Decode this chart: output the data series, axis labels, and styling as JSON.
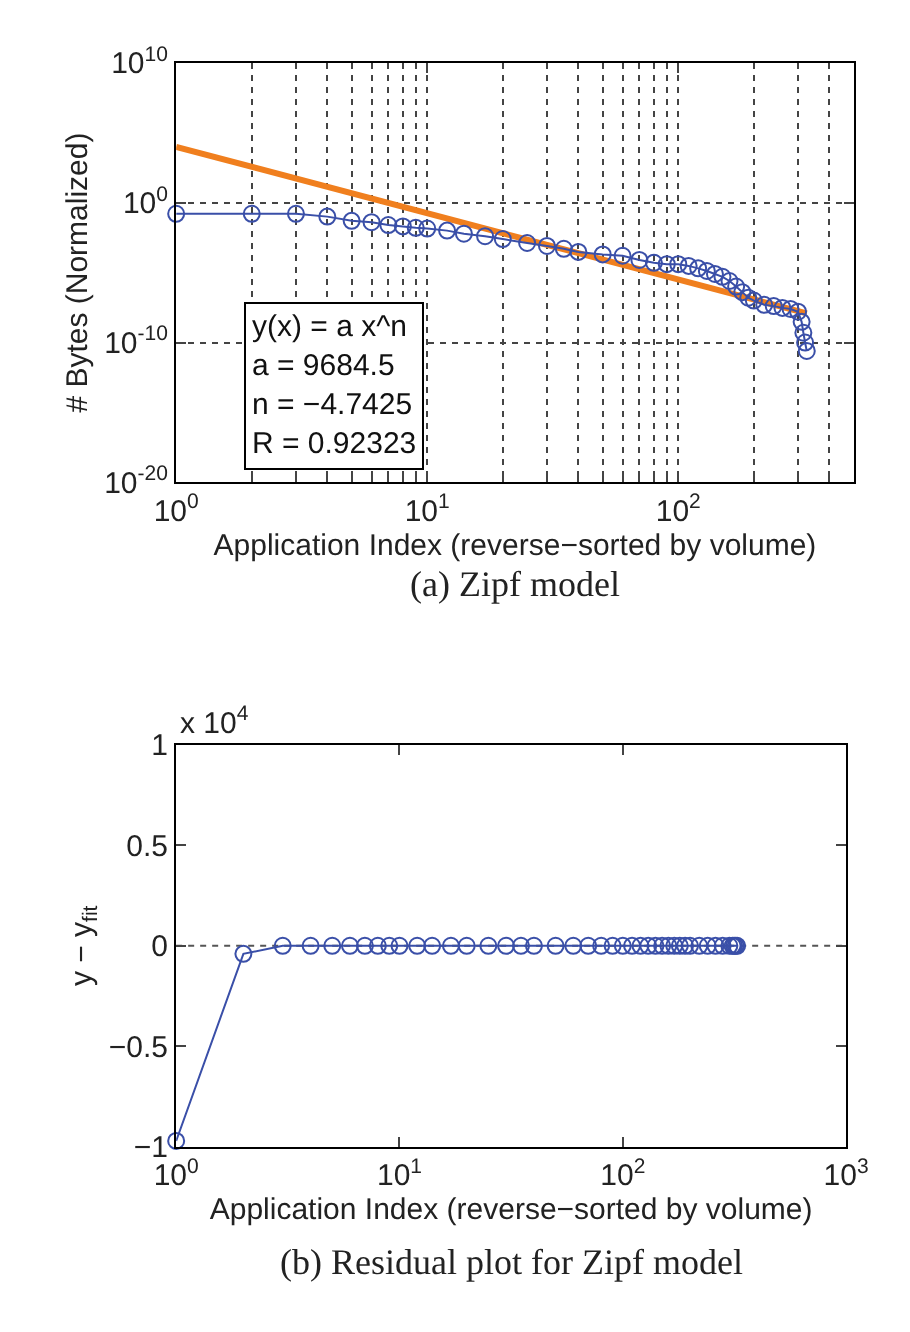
{
  "chart_data": [
    {
      "type": "line",
      "title": "(a) Zipf model",
      "xlabel": "Application Index (reverse−sorted by volume)",
      "ylabel": "# Bytes (Normalized)",
      "log": "xy",
      "grid": true,
      "xlim": [
        1,
        500
      ],
      "xticks": [
        {
          "value": 1,
          "label": "10$^{0}$"
        },
        {
          "value": 10,
          "label": "10$^{1}$"
        },
        {
          "value": 100,
          "label": "10$^{2}$"
        }
      ],
      "ylim": [
        1e-20,
        10000000000.0
      ],
      "yticks": [
        {
          "value": 1e-20,
          "label": "10$^{-20}$"
        },
        {
          "value": 1e-10,
          "label": "10$^{-10}$"
        },
        {
          "value": 1,
          "label": "10$^{0}$"
        },
        {
          "value": 10000000000.0,
          "label": "10$^{10}$"
        }
      ],
      "annotations": [
        "y(x) = a x^n\na = 9684.5\nn = −4.7425\nR = 0.92323"
      ],
      "series": [
        {
          "color": "#f07f1e",
          "marker": "none",
          "x": [
            1,
            325
          ],
          "values": [
            9684.5,
            1.2e-08
          ]
        },
        {
          "color": "#3a4fa8",
          "marker": "circle",
          "x": [
            1,
            2,
            3,
            4,
            5,
            6,
            7,
            8,
            9,
            10,
            12,
            14,
            17,
            20,
            25,
            30,
            35,
            40,
            50,
            60,
            70,
            80,
            90,
            100,
            110,
            120,
            130,
            140,
            150,
            160,
            170,
            180,
            190,
            200,
            220,
            240,
            260,
            280,
            300,
            310,
            315,
            320,
            325
          ],
          "values": [
            0.16,
            0.16,
            0.16,
            0.1,
            0.05,
            0.04,
            0.025,
            0.02,
            0.016,
            0.014,
            0.01,
            0.006,
            0.004,
            0.0025,
            0.0013,
            0.0008,
            0.0005,
            0.0003,
            0.0002,
            0.00016,
            8e-05,
            5e-05,
            4e-05,
            4e-05,
            3e-05,
            2e-05,
            1.3e-05,
            8e-06,
            5e-06,
            2.5e-06,
            1e-06,
            4e-07,
            1.6e-07,
            1e-07,
            5e-08,
            4e-08,
            3e-08,
            2.5e-08,
            1.6e-08,
            3e-09,
            5e-10,
            1e-10,
            2.5e-11
          ]
        }
      ]
    },
    {
      "type": "line",
      "title": "(b) Residual plot for Zipf model",
      "xlabel": "Application Index (reverse−sorted by volume)",
      "ylabel": "y − y$_{fit}$",
      "log": "x",
      "grid": false,
      "xlim": [
        1,
        1000
      ],
      "xticks": [
        {
          "value": 1,
          "label": "10$^{0}$"
        },
        {
          "value": 10,
          "label": "10$^{1}$"
        },
        {
          "value": 100,
          "label": "10$^{2}$"
        },
        {
          "value": 1000,
          "label": "10$^{3}$"
        }
      ],
      "ylim": [
        -1,
        1
      ],
      "yticks": [
        {
          "value": -1,
          "label": "−1"
        },
        {
          "value": -0.5,
          "label": "−0.5"
        },
        0,
        0.5,
        1
      ],
      "annotations": [
        "x 10$^{4}$"
      ],
      "ref_lines": [
        {
          "axis": "y",
          "value": 0,
          "line_style": "dotted",
          "color": "#555555"
        }
      ],
      "series": [
        {
          "color": "#3a4fa8",
          "marker": "circle",
          "x": [
            1,
            2,
            3,
            4,
            5,
            6,
            7,
            8,
            9,
            10,
            12,
            14,
            17,
            20,
            25,
            30,
            35,
            40,
            50,
            60,
            70,
            80,
            90,
            100,
            110,
            120,
            130,
            140,
            150,
            160,
            170,
            180,
            190,
            200,
            220,
            240,
            260,
            280,
            300,
            310,
            315,
            320,
            325
          ],
          "values": [
            -0.97,
            -0.04,
            0,
            0,
            0,
            0,
            0,
            0,
            0,
            0,
            0,
            0,
            0,
            0,
            0,
            0,
            0,
            0,
            0,
            0,
            0,
            0,
            0,
            0,
            0,
            0,
            0,
            0,
            0,
            0,
            0,
            0,
            0,
            0,
            0,
            0,
            0,
            0,
            0,
            0,
            0,
            0,
            0
          ]
        }
      ]
    }
  ]
}
